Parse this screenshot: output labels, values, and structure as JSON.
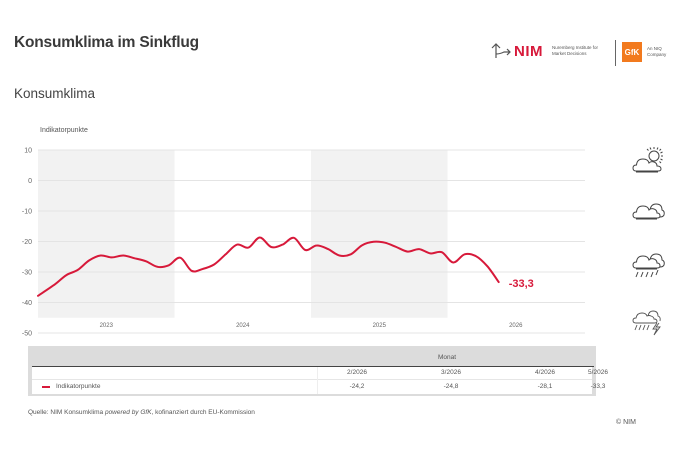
{
  "header": {
    "title": "Konsumklima im Sinkflug",
    "subtitle": "Konsumklima",
    "logo_nim": "NIM",
    "logo_nim_sub": "Nuremberg Institute for Market Decisions",
    "logo_gfk": "GfK",
    "logo_gfk_sub": "An NIQ Company"
  },
  "colors": {
    "series": "#d7193a",
    "band": "#f2f2f2",
    "grid": "#e4e4e4",
    "table_bg": "#dcdcdc"
  },
  "chart_data": {
    "type": "line",
    "ylabel": "Indikatorpunkte",
    "ylim": [
      -50,
      10
    ],
    "yticks": [
      10,
      0,
      -10,
      -20,
      -30,
      -40,
      -50
    ],
    "ytick_labels": [
      "10",
      "0",
      "-10",
      "-20",
      "-30",
      "-40",
      "-50"
    ],
    "grid": true,
    "years": [
      "2023",
      "2024",
      "2025",
      "2026"
    ],
    "shaded_years": [
      "2023",
      "2025"
    ],
    "x_start": "1/2023",
    "x_end": "5/2026",
    "series": [
      {
        "name": "Indikatorpunkte",
        "values": [
          -37.8,
          -34.0,
          -31.0,
          -29.3,
          -26.2,
          -24.6,
          -25.2,
          -24.6,
          -25.5,
          -26.5,
          -28.3,
          -27.8,
          -25.3,
          -29.6,
          -29.0,
          -27.5,
          -24.2,
          -21.0,
          -22.0,
          -18.7,
          -21.8,
          -21.0,
          -18.8,
          -22.8,
          -21.3,
          -22.5,
          -24.6,
          -24.2,
          -21.2,
          -20.1,
          -20.4,
          -21.8,
          -23.3,
          -22.5,
          -23.9,
          -23.5,
          -26.9,
          -24.2,
          -24.8,
          -28.1,
          -33.3
        ]
      }
    ],
    "end_label": "-33,3"
  },
  "table": {
    "group_header": "Monat",
    "columns": [
      "2/2026",
      "3/2026",
      "4/2026",
      "5/2026"
    ],
    "rows": [
      {
        "label": "Indikatorpunkte",
        "values": [
          "-24,2",
          "-24,8",
          "-28,1",
          "-33,3"
        ]
      }
    ]
  },
  "weather_icons": [
    "sun-cloud-icon",
    "cloud-icon",
    "rain-cloud-icon",
    "thunderstorm-icon"
  ],
  "footer": {
    "source_prefix": "Quelle: NIM Konsumklima ",
    "source_italic": "powered by GfK",
    "source_suffix": ", kofinanziert durch EU-Kommission",
    "copyright": "© NIM"
  }
}
